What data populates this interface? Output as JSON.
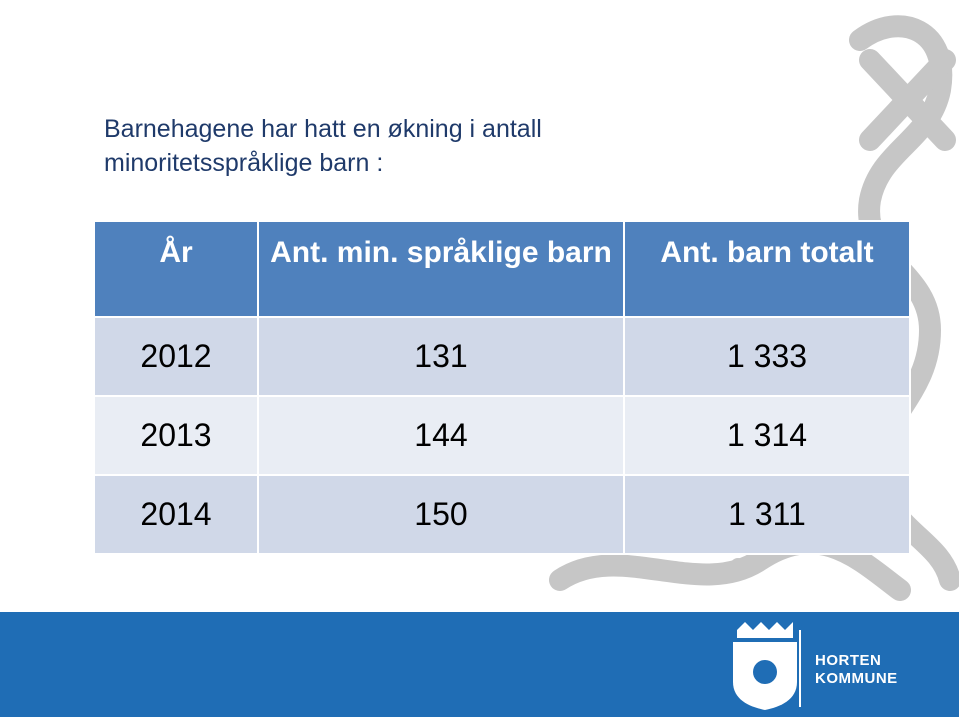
{
  "slide": {
    "title": "Barnehagene har hatt en økning i antall minoritetsspråklige barn :",
    "table": {
      "header": [
        "År",
        "Ant. min. språklige barn",
        "Ant. barn totalt"
      ],
      "rows": [
        [
          "2012",
          "131",
          "1 333"
        ],
        [
          "2013",
          "144",
          "1 314"
        ],
        [
          "2014",
          "150",
          "1 311"
        ]
      ]
    },
    "footer": {
      "logo_lines": [
        "HORTEN",
        "KOMMUNE"
      ]
    }
  }
}
